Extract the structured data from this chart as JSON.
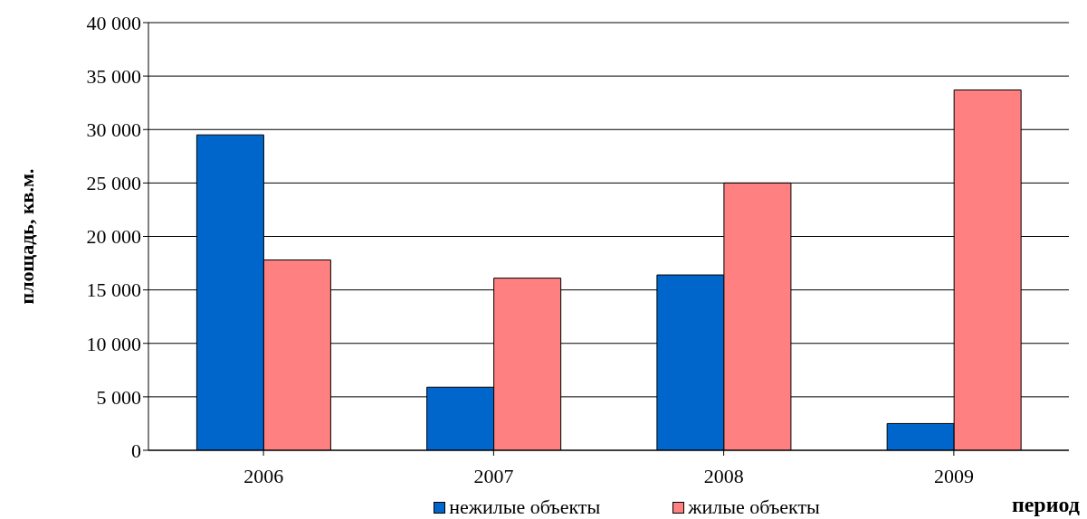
{
  "chart_data": {
    "type": "bar",
    "ylabel": "площадь, кв.м.",
    "xlabel": "период",
    "categories": [
      "2006",
      "2007",
      "2008",
      "2009"
    ],
    "series": [
      {
        "name": "нежилые объекты",
        "color": "#0066cc",
        "values": [
          29500,
          5900,
          16400,
          2500
        ]
      },
      {
        "name": "жилые объекты",
        "color": "#ff8080",
        "values": [
          17800,
          16100,
          25000,
          33700
        ]
      }
    ],
    "ylim": [
      0,
      40000
    ],
    "yticks": [
      {
        "value": 0,
        "label": "0"
      },
      {
        "value": 5000,
        "label": "5 000"
      },
      {
        "value": 10000,
        "label": "10 000"
      },
      {
        "value": 15000,
        "label": "15 000"
      },
      {
        "value": 20000,
        "label": "20 000"
      },
      {
        "value": 25000,
        "label": "25 000"
      },
      {
        "value": 30000,
        "label": "30 000"
      },
      {
        "value": 35000,
        "label": "35 000"
      },
      {
        "value": 40000,
        "label": "40 000"
      }
    ],
    "grid": "y",
    "legend": "bottom"
  }
}
